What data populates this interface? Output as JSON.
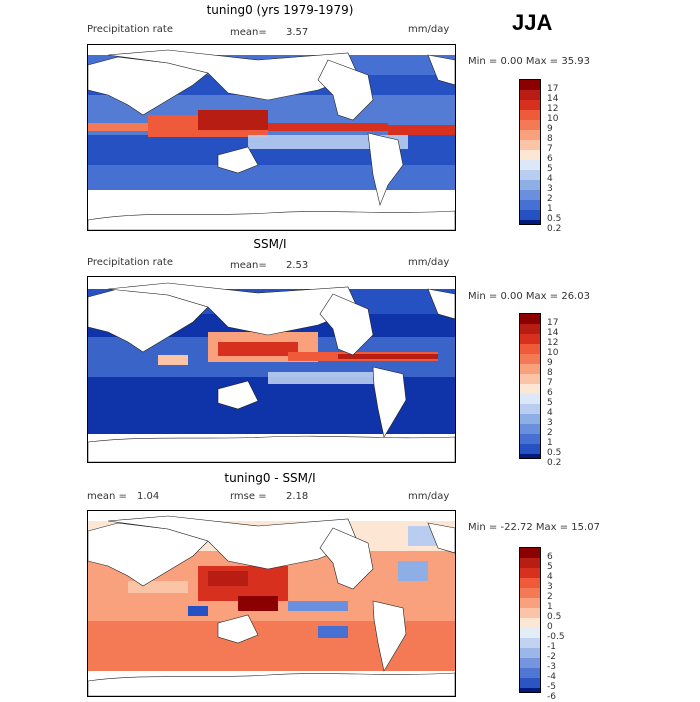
{
  "season": "JJA",
  "panels": [
    {
      "id": "model",
      "title": "tuning0 (yrs 1979-1979)",
      "variable": "Precipitation rate",
      "stat1_label": "mean=",
      "stat1_value": "3.57",
      "units": "mm/day",
      "minmax": "Min =    0.00  Max =   35.93",
      "colorbar_labels": [
        "17",
        "14",
        "12",
        "10",
        "9",
        "8",
        "7",
        "6",
        "5",
        "4",
        "3",
        "2",
        "1",
        "0.5",
        "0.2"
      ]
    },
    {
      "id": "obs",
      "title": "SSM/I",
      "variable": "Precipitation rate",
      "stat1_label": "mean=",
      "stat1_value": "2.53",
      "units": "mm/day",
      "minmax": "Min =    0.00  Max =   26.03",
      "colorbar_labels": [
        "17",
        "14",
        "12",
        "10",
        "9",
        "8",
        "7",
        "6",
        "5",
        "4",
        "3",
        "2",
        "1",
        "0.5",
        "0.2"
      ]
    },
    {
      "id": "diff",
      "title": "tuning0 - SSM/I",
      "stat1_label": "mean =",
      "stat1_value": "1.04",
      "stat2_label": "rmse =",
      "stat2_value": "2.18",
      "units": "mm/day",
      "minmax": "Min = -22.72  Max =   15.07",
      "colorbar_labels": [
        "6",
        "5",
        "4",
        "3",
        "2",
        "1",
        "0.5",
        "0",
        "-0.5",
        "-1",
        "-2",
        "-3",
        "-4",
        "-5",
        "-6"
      ]
    }
  ],
  "colors": {
    "precip_scale": [
      "#8b0000",
      "#b81d13",
      "#d7301f",
      "#ef5a3a",
      "#f47a56",
      "#f9a07d",
      "#fbc4a6",
      "#fde6d4",
      "#dce7f7",
      "#b9cdf0",
      "#8eaee6",
      "#6a8fdc",
      "#4670d1",
      "#2551c2",
      "#0f33a8",
      "#001b7c"
    ],
    "diff_scale": [
      "#8b0000",
      "#b81d13",
      "#d7301f",
      "#ef5a3a",
      "#f47a56",
      "#f9a07d",
      "#fbc4a6",
      "#fde6d4",
      "#e4ecf8",
      "#c1d3f1",
      "#9bb6e8",
      "#7596de",
      "#4f76d2",
      "#2a55c3",
      "#0f33a8",
      "#001b7c"
    ]
  }
}
